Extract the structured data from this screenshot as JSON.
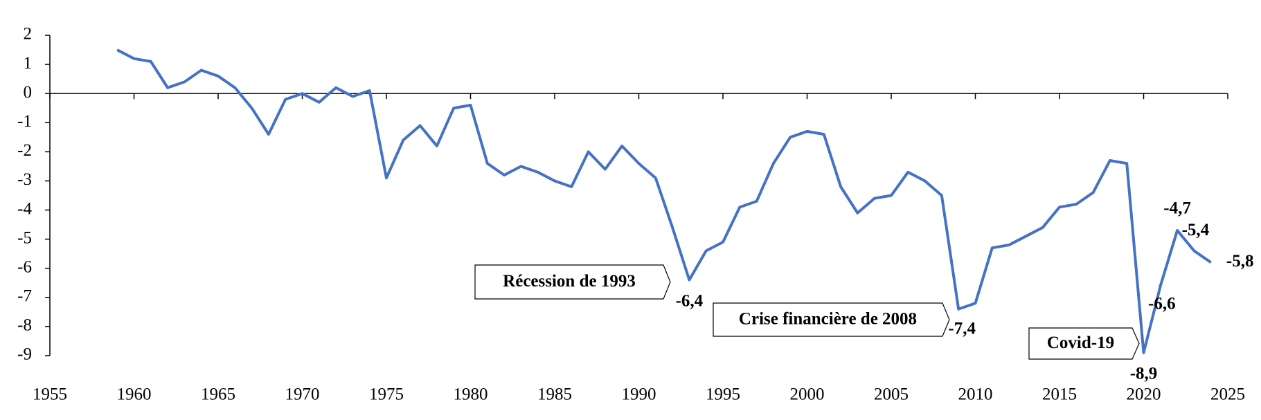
{
  "chart_data": {
    "type": "line",
    "x": [
      1959,
      1960,
      1961,
      1962,
      1963,
      1964,
      1965,
      1966,
      1967,
      1968,
      1969,
      1970,
      1971,
      1972,
      1973,
      1974,
      1975,
      1976,
      1977,
      1978,
      1979,
      1980,
      1981,
      1982,
      1983,
      1984,
      1985,
      1986,
      1987,
      1988,
      1989,
      1990,
      1991,
      1992,
      1993,
      1994,
      1995,
      1996,
      1997,
      1998,
      1999,
      2000,
      2001,
      2002,
      2003,
      2004,
      2005,
      2006,
      2007,
      2008,
      2009,
      2010,
      2011,
      2012,
      2013,
      2014,
      2015,
      2016,
      2017,
      2018,
      2019,
      2020,
      2021,
      2022,
      2023,
      2024
    ],
    "series": [
      {
        "color": "#4472c4",
        "values": [
          1.5,
          1.2,
          1.1,
          0.2,
          0.4,
          0.8,
          0.6,
          0.2,
          -0.5,
          -1.4,
          -0.2,
          0.0,
          -0.3,
          0.2,
          -0.1,
          0.1,
          -2.9,
          -1.6,
          -1.1,
          -1.8,
          -0.5,
          -0.4,
          -2.4,
          -2.8,
          -2.5,
          -2.7,
          -3.0,
          -3.2,
          -2.0,
          -2.6,
          -1.8,
          -2.4,
          -2.9,
          -4.6,
          -6.4,
          -5.4,
          -5.1,
          -3.9,
          -3.7,
          -2.4,
          -1.5,
          -1.3,
          -1.4,
          -3.2,
          -4.1,
          -3.6,
          -3.5,
          -2.7,
          -3.0,
          -3.5,
          -7.4,
          -7.2,
          -5.3,
          -5.2,
          -4.9,
          -4.6,
          -3.9,
          -3.8,
          -3.4,
          -2.3,
          -2.4,
          -8.9,
          -6.6,
          -4.7,
          -5.4,
          -5.8
        ],
        "value_labels": [
          null,
          null,
          null,
          null,
          null,
          null,
          null,
          null,
          null,
          null,
          null,
          null,
          null,
          null,
          null,
          null,
          null,
          null,
          null,
          null,
          null,
          null,
          null,
          null,
          null,
          null,
          null,
          null,
          null,
          null,
          null,
          null,
          null,
          null,
          "-6,4",
          null,
          null,
          null,
          null,
          null,
          null,
          null,
          null,
          null,
          null,
          null,
          null,
          null,
          null,
          null,
          "-7,4",
          null,
          null,
          null,
          null,
          null,
          null,
          null,
          null,
          null,
          null,
          "-8,9",
          "-6,6",
          "-4,7",
          "-5,4",
          "-5,8"
        ]
      }
    ],
    "annotations": [
      "Récession de 1993",
      "Crise financière de 2008",
      "Covid-19"
    ],
    "xlim": [
      1955,
      2025
    ],
    "xticks": [
      1955,
      1960,
      1965,
      1970,
      1975,
      1980,
      1985,
      1990,
      1995,
      2000,
      2005,
      2010,
      2015,
      2020,
      2025
    ],
    "ylim": [
      -9,
      2
    ],
    "yticks": [
      -9,
      -8,
      -7,
      -6,
      -5,
      -4,
      -3,
      -2,
      -1,
      0,
      1,
      2
    ]
  }
}
